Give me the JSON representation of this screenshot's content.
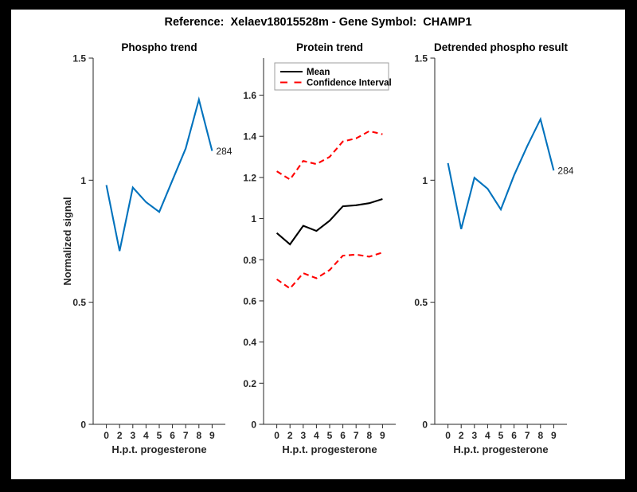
{
  "figure": {
    "title": "Reference:  Xelaev18015528m - Gene Symbol:  CHAMP1",
    "background": "#000000",
    "canvas_color": "#ffffff",
    "axis_color": "#262626",
    "annotation_color": "#1a1a1a",
    "blue": "#0072BD",
    "red": "#FF0000"
  },
  "chart_data": [
    {
      "type": "line",
      "title": "Phospho trend",
      "xlabel": "H.p.t. progesterone",
      "ylabel": "Normalized signal",
      "x_tick_labels": [
        "0",
        "2",
        "3",
        "4",
        "5",
        "6",
        "7",
        "8",
        "9"
      ],
      "y_ticks": [
        [
          0,
          "0"
        ],
        [
          0.5,
          "0.5"
        ],
        [
          1,
          "1"
        ],
        [
          1.5,
          "1.5"
        ]
      ],
      "ylim": [
        0,
        1.5
      ],
      "grid": false,
      "series": [
        {
          "name": "Phospho trend",
          "color": "#0072BD",
          "style": "solid",
          "values": [
            0.98,
            0.71,
            0.97,
            0.91,
            0.87,
            1.0,
            1.13,
            1.33,
            1.12
          ]
        }
      ],
      "end_label": "284"
    },
    {
      "type": "line",
      "title": "Protein trend",
      "xlabel": "H.p.t. progesterone",
      "ylabel": "",
      "x_tick_labels": [
        "0",
        "2",
        "3",
        "4",
        "5",
        "6",
        "7",
        "8",
        "9"
      ],
      "y_ticks": [
        [
          0,
          "0"
        ],
        [
          0.2,
          "0.2"
        ],
        [
          0.4,
          "0.4"
        ],
        [
          0.6,
          "0.6"
        ],
        [
          0.8,
          "0.8"
        ],
        [
          1,
          "1"
        ],
        [
          1.2,
          "1.2"
        ],
        [
          1.4,
          "1.4"
        ],
        [
          1.6,
          "1.6"
        ]
      ],
      "ylim": [
        0,
        1.78
      ],
      "grid": false,
      "legend": {
        "position": "top",
        "edge_color": "#9e9e9e",
        "items": [
          {
            "label": "Mean",
            "color": "#000000",
            "style": "solid"
          },
          {
            "label": "Confidence Interval",
            "color": "#FF0000",
            "style": "dashed"
          }
        ]
      },
      "series": [
        {
          "name": "Mean",
          "color": "#000000",
          "style": "solid",
          "values": [
            0.93,
            0.875,
            0.965,
            0.94,
            0.99,
            1.06,
            1.065,
            1.075,
            1.095
          ]
        },
        {
          "name": "Confidence interval upper",
          "color": "#FF0000",
          "style": "dashed",
          "values": [
            1.23,
            1.19,
            1.28,
            1.265,
            1.3,
            1.375,
            1.39,
            1.425,
            1.41
          ]
        },
        {
          "name": "Confidence interval lower",
          "color": "#FF0000",
          "style": "dashed",
          "values": [
            0.705,
            0.66,
            0.735,
            0.71,
            0.75,
            0.82,
            0.825,
            0.815,
            0.835
          ]
        }
      ]
    },
    {
      "type": "line",
      "title": "Detrended phospho result",
      "xlabel": "H.p.t. progesterone",
      "ylabel": "",
      "x_tick_labels": [
        "0",
        "2",
        "3",
        "4",
        "5",
        "6",
        "7",
        "8",
        "9"
      ],
      "y_ticks": [
        [
          0,
          "0"
        ],
        [
          0.5,
          "0.5"
        ],
        [
          1,
          "1"
        ],
        [
          1.5,
          "1.5"
        ]
      ],
      "ylim": [
        0,
        1.5
      ],
      "grid": false,
      "series": [
        {
          "name": "Detrended phospho",
          "color": "#0072BD",
          "style": "solid",
          "values": [
            1.07,
            0.8,
            1.01,
            0.965,
            0.88,
            1.02,
            1.14,
            1.25,
            1.04
          ]
        }
      ],
      "end_label": "284"
    }
  ]
}
